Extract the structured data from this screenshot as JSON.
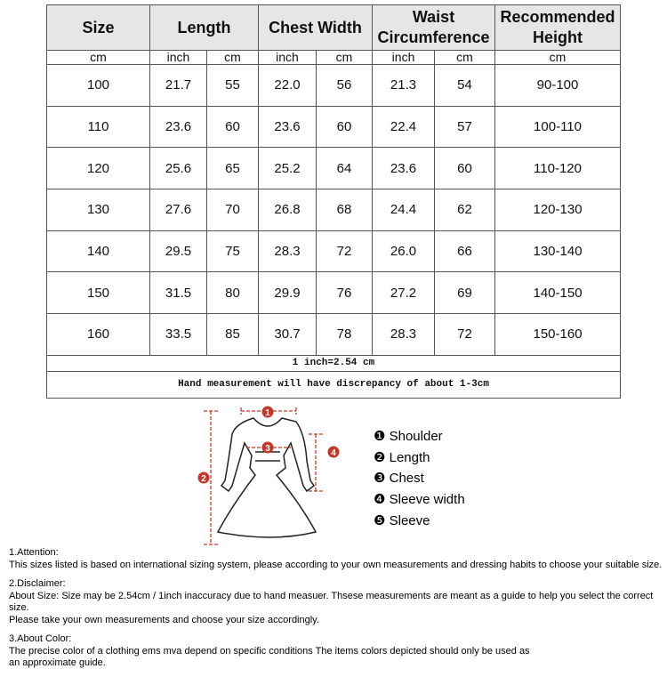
{
  "table": {
    "header": [
      "Size",
      "Length",
      "Chest Width",
      "Waist Circumference",
      "Recommended Height"
    ],
    "units": [
      "cm",
      "inch",
      "cm",
      "inch",
      "cm",
      "inch",
      "cm",
      "cm"
    ],
    "rows": [
      [
        "100",
        "21.7",
        "55",
        "22.0",
        "56",
        "21.3",
        "54",
        "90-100"
      ],
      [
        "110",
        "23.6",
        "60",
        "23.6",
        "60",
        "22.4",
        "57",
        "100-110"
      ],
      [
        "120",
        "25.6",
        "65",
        "25.2",
        "64",
        "23.6",
        "60",
        "110-120"
      ],
      [
        "130",
        "27.6",
        "70",
        "26.8",
        "68",
        "24.4",
        "62",
        "120-130"
      ],
      [
        "140",
        "29.5",
        "75",
        "28.3",
        "72",
        "26.0",
        "66",
        "130-140"
      ],
      [
        "150",
        "31.5",
        "80",
        "29.9",
        "76",
        "27.2",
        "69",
        "140-150"
      ],
      [
        "160",
        "33.5",
        "85",
        "30.7",
        "78",
        "28.3",
        "72",
        "150-160"
      ]
    ],
    "conversion": "1 inch=2.54 cm",
    "note": "Hand measurement will have discrepancy of about 1-3cm"
  },
  "diagram": {
    "markers": [
      "1",
      "2",
      "3",
      "4"
    ],
    "legend": [
      "❶ Shoulder",
      "❷ Length",
      "❸ Chest",
      "❹ Sleeve width",
      "❺ Sleeve"
    ]
  },
  "notes": [
    {
      "title": "1.Attention:",
      "lines": [
        "This sizes listed is based on international sizing system, please according to your own measurements and dressing habits to choose your suitable size."
      ]
    },
    {
      "title": "2.Disclaimer:",
      "lines": [
        "About Size: Size may be 2.54cm / 1inch inaccuracy due to hand measuer. Thsese measurements are meant as a guide to help you select the correct size.",
        "Please take your own measurements and choose your size accordingly."
      ]
    },
    {
      "title": "3.About Color:",
      "lines": [
        "The precise color of a clothing ems mva depend on specific conditions The items colors depicted should only be used as",
        "an approximate guide."
      ]
    }
  ]
}
